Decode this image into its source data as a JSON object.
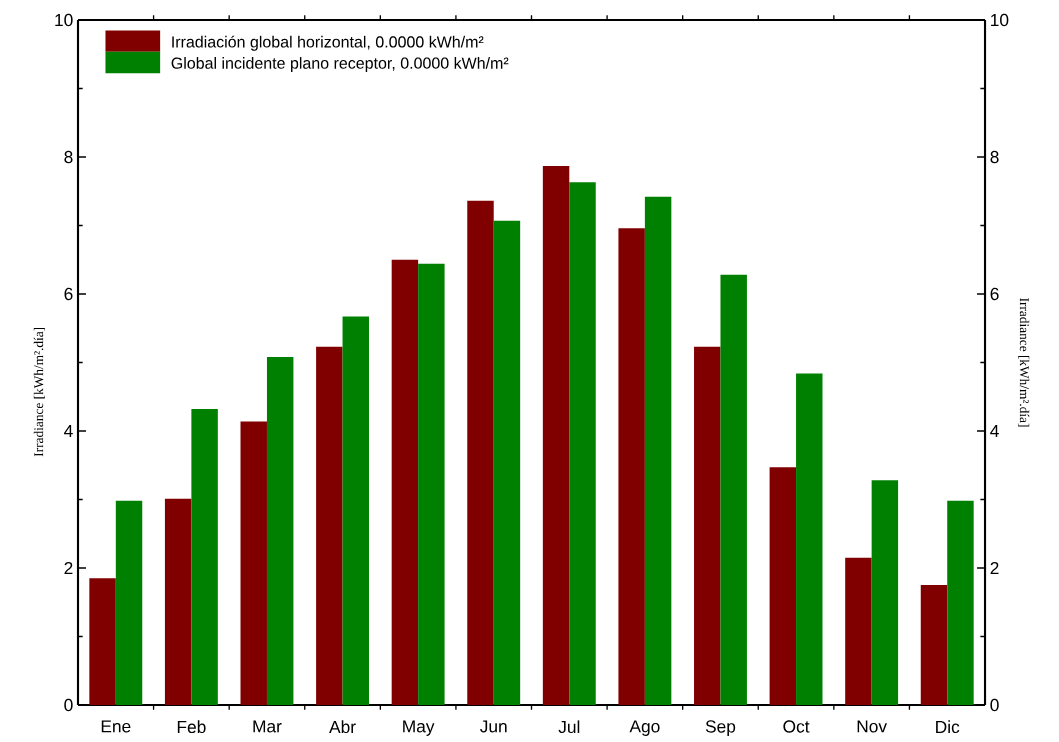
{
  "chart_data": {
    "type": "bar",
    "categories": [
      "Ene",
      "Feb",
      "Mar",
      "Abr",
      "May",
      "Jun",
      "Jul",
      "Ago",
      "Sep",
      "Oct",
      "Nov",
      "Dic"
    ],
    "series": [
      {
        "name": "Irradiación global horizontal,  0.0000 kWh/m²",
        "color": "#800000",
        "values": [
          1.85,
          3.01,
          4.14,
          5.23,
          6.5,
          7.36,
          7.87,
          6.96,
          5.23,
          3.47,
          2.15,
          1.75
        ]
      },
      {
        "name": "Global incidente plano receptor,  0.0000 kWh/m²",
        "color": "#008000",
        "values": [
          2.98,
          4.32,
          5.08,
          5.67,
          6.44,
          7.07,
          7.63,
          7.42,
          6.28,
          4.84,
          3.28,
          2.98
        ]
      }
    ],
    "ylabel": "Irradiance  [kWh/m².día]",
    "y2label": "Irradiance  [kWh/m².día]",
    "ylim": [
      0,
      10
    ],
    "yticks": [
      0,
      {
        "value": 1,
        "label": null
      },
      2,
      {
        "value": 3,
        "label": null
      },
      4,
      {
        "value": 5,
        "label": null
      },
      6,
      {
        "value": 7,
        "label": null
      },
      8,
      {
        "value": 9,
        "label": null
      },
      10
    ],
    "y2lim": [
      0,
      10
    ],
    "y2ticks": [
      0,
      {
        "value": 1,
        "label": null
      },
      2,
      {
        "value": 3,
        "label": null
      },
      4,
      {
        "value": 5,
        "label": null
      },
      6,
      {
        "value": 7,
        "label": null
      },
      8,
      {
        "value": 9,
        "label": null
      },
      10
    ],
    "legend": "top left",
    "grid": false
  }
}
